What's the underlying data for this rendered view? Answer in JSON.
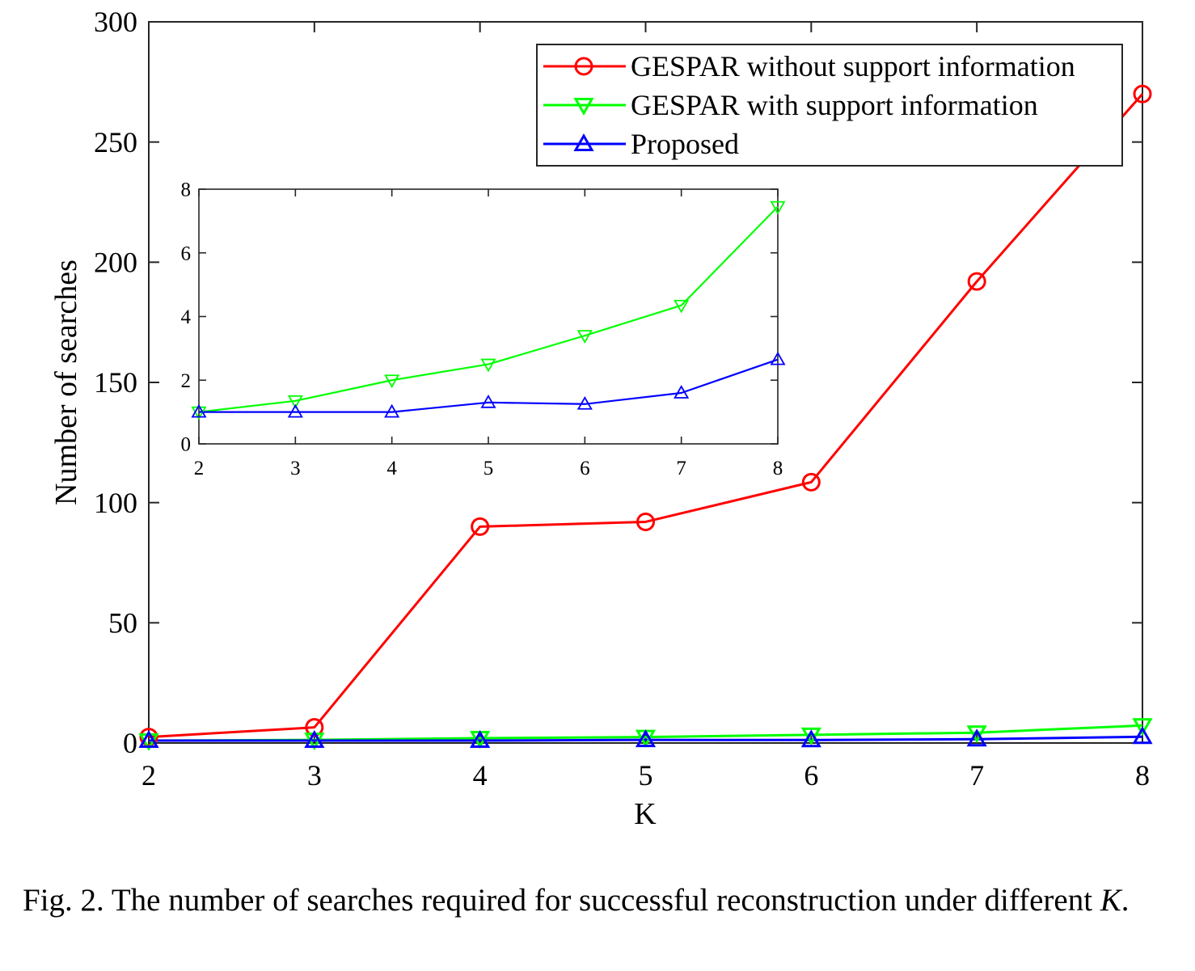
{
  "chart_data": [
    {
      "type": "line",
      "xlabel": "K",
      "ylabel": "Number of searches",
      "x": [
        2,
        3,
        4,
        5,
        6,
        7,
        8
      ],
      "xlim": [
        2,
        8
      ],
      "ylim": [
        0,
        300
      ],
      "xticks": [
        "2",
        "3",
        "4",
        "5",
        "6",
        "7",
        "8"
      ],
      "yticks": [
        "0",
        "50",
        "100",
        "150",
        "200",
        "250",
        "300"
      ],
      "grid": false,
      "legend_position": "top-right",
      "series": [
        {
          "name": "GESPAR without support information",
          "color": "#ff0000",
          "marker": "circle",
          "values": [
            2.5,
            6.5,
            90,
            92,
            108.5,
            192,
            270
          ]
        },
        {
          "name": "GESPAR with support information",
          "color": "#00ff00",
          "marker": "triangle-down",
          "values": [
            1.0,
            1.3,
            2.0,
            2.5,
            3.4,
            4.3,
            7.3
          ]
        },
        {
          "name": "Proposed",
          "color": "#0000ff",
          "marker": "triangle-up",
          "values": [
            1.0,
            1.0,
            1.0,
            1.3,
            1.25,
            1.6,
            2.6
          ]
        }
      ]
    },
    {
      "type": "line",
      "role": "inset",
      "x": [
        2,
        3,
        4,
        5,
        6,
        7,
        8
      ],
      "xlim": [
        2,
        8
      ],
      "ylim": [
        0,
        8
      ],
      "xticks": [
        "2",
        "3",
        "4",
        "5",
        "6",
        "7",
        "8"
      ],
      "yticks": [
        "0",
        "2",
        "4",
        "6",
        "8"
      ],
      "grid": false,
      "series": [
        {
          "color": "#00ff00",
          "marker": "triangle-down",
          "values": [
            1.0,
            1.35,
            2.0,
            2.5,
            3.4,
            4.35,
            7.45
          ]
        },
        {
          "color": "#0000ff",
          "marker": "triangle-up",
          "values": [
            1.0,
            1.0,
            1.0,
            1.3,
            1.25,
            1.6,
            2.65
          ]
        }
      ]
    }
  ],
  "caption": {
    "prefix": "Fig. 2.  The number of searches required for successful reconstruction under different ",
    "variable": "K",
    "suffix": "."
  }
}
